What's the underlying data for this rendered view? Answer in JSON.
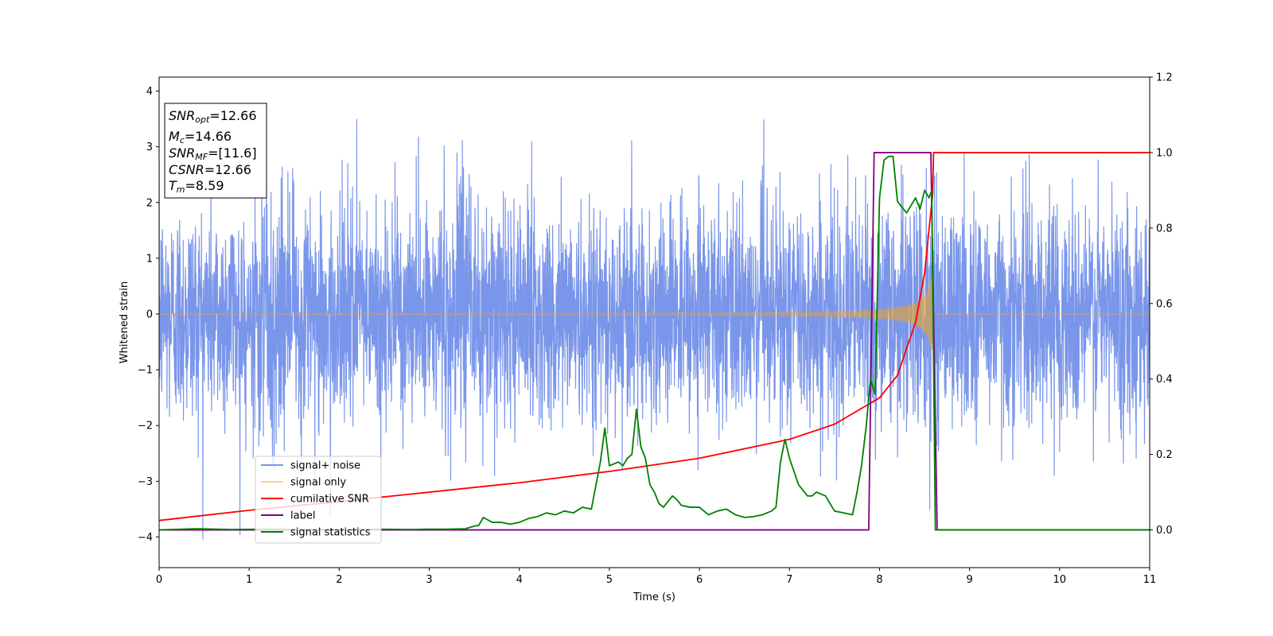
{
  "chart_data": {
    "type": "line",
    "title": "",
    "xlabel": "Time (s)",
    "ylabel": "Whitened strain",
    "xlim": [
      0,
      11
    ],
    "ylim_left": [
      -4.55,
      4.25
    ],
    "ylim_right": [
      -0.1,
      1.2
    ],
    "xticks": [
      0,
      1,
      2,
      3,
      4,
      5,
      6,
      7,
      8,
      9,
      10,
      11
    ],
    "yticks_left": [
      -4,
      -3,
      -2,
      -1,
      0,
      1,
      2,
      3,
      4
    ],
    "yticks_right": [
      0.0,
      0.2,
      0.4,
      0.6,
      0.8,
      1.0,
      1.2
    ],
    "grid": false,
    "legend_position": "lower-left",
    "annotation": {
      "snr_opt": {
        "base": "SNR",
        "sub": "opt",
        "value": "=12.66"
      },
      "mc": {
        "base": "M",
        "sub": "c",
        "value": "=14.66"
      },
      "snr_mf": {
        "base": "SNR",
        "sub": "MF",
        "value": "=[11.6]"
      },
      "csnr": {
        "base": "CSNR",
        "sub": "",
        "value": "=12.66"
      },
      "tm": {
        "base": "T",
        "sub": "m",
        "value": "=8.59"
      }
    },
    "series": [
      {
        "name": "signal+ noise",
        "color": "#4169e1",
        "axis": "left",
        "kind": "noise",
        "std": 1.0,
        "min": -4.15,
        "max": 3.85
      },
      {
        "name": "signal only",
        "color": "#ffa500",
        "axis": "left",
        "kind": "chirp",
        "merger_time": 8.59,
        "peak_amplitude": 2.1
      },
      {
        "name": "cumilative SNR",
        "color": "#ff0000",
        "axis": "right",
        "x": [
          0,
          1,
          2,
          3,
          4,
          5,
          6,
          7,
          7.5,
          8,
          8.2,
          8.4,
          8.5,
          8.59,
          8.6,
          11
        ],
        "y": [
          0.025,
          0.052,
          0.075,
          0.1,
          0.125,
          0.155,
          0.19,
          0.24,
          0.28,
          0.35,
          0.41,
          0.55,
          0.68,
          0.89,
          1.0,
          1.0
        ]
      },
      {
        "name": "label",
        "color": "#800080",
        "axis": "right",
        "x": [
          0,
          7.88,
          7.94,
          8.57,
          8.64,
          11
        ],
        "y": [
          0,
          0,
          1,
          1,
          0,
          0
        ]
      },
      {
        "name": "signal statistics",
        "color": "#008000",
        "axis": "right",
        "x": [
          0,
          0.4,
          0.8,
          1.2,
          1.6,
          2.0,
          2.4,
          2.8,
          3.0,
          3.2,
          3.4,
          3.5,
          3.55,
          3.6,
          3.7,
          3.8,
          3.9,
          4.0,
          4.1,
          4.2,
          4.3,
          4.4,
          4.5,
          4.6,
          4.7,
          4.8,
          4.9,
          4.95,
          5.0,
          5.1,
          5.15,
          5.2,
          5.25,
          5.3,
          5.35,
          5.4,
          5.45,
          5.5,
          5.55,
          5.6,
          5.7,
          5.75,
          5.8,
          5.9,
          6.0,
          6.1,
          6.2,
          6.3,
          6.4,
          6.5,
          6.6,
          6.7,
          6.8,
          6.85,
          6.9,
          6.95,
          7.0,
          7.1,
          7.2,
          7.25,
          7.3,
          7.4,
          7.5,
          7.6,
          7.7,
          7.75,
          7.8,
          7.85,
          7.9,
          7.95,
          8.0,
          8.05,
          8.1,
          8.15,
          8.2,
          8.3,
          8.4,
          8.45,
          8.5,
          8.55,
          8.58,
          8.62,
          8.7,
          9.0,
          11
        ],
        "y": [
          0.0,
          0.003,
          0.001,
          0.002,
          0.001,
          0.001,
          0.002,
          0.001,
          0.002,
          0.002,
          0.003,
          0.01,
          0.012,
          0.033,
          0.02,
          0.02,
          0.015,
          0.02,
          0.03,
          0.035,
          0.045,
          0.04,
          0.05,
          0.045,
          0.06,
          0.055,
          0.18,
          0.27,
          0.17,
          0.18,
          0.17,
          0.19,
          0.2,
          0.32,
          0.22,
          0.19,
          0.12,
          0.1,
          0.07,
          0.06,
          0.09,
          0.08,
          0.065,
          0.06,
          0.06,
          0.04,
          0.05,
          0.055,
          0.04,
          0.033,
          0.035,
          0.04,
          0.05,
          0.06,
          0.18,
          0.24,
          0.19,
          0.12,
          0.09,
          0.09,
          0.1,
          0.09,
          0.05,
          0.045,
          0.04,
          0.1,
          0.17,
          0.27,
          0.4,
          0.36,
          0.88,
          0.98,
          0.99,
          0.99,
          0.87,
          0.84,
          0.88,
          0.85,
          0.9,
          0.88,
          0.9,
          0.0,
          0.0,
          0.0,
          0.0
        ]
      }
    ]
  }
}
